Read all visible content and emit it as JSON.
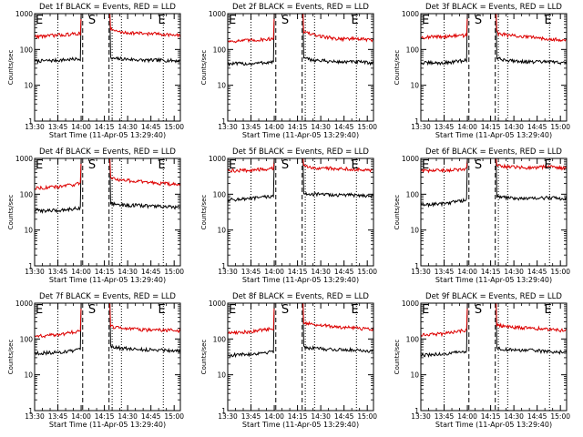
{
  "colors": {
    "events": "#000000",
    "lld": "#dd0000",
    "axis": "#000000",
    "background": "#ffffff"
  },
  "shared": {
    "type": "line",
    "ylabel": "Counts/sec",
    "xlabel": "Start Time (11-Apr-05 13:29:40)",
    "title_suffix": " BLACK = Events, RED = LLD",
    "x_unit": "minutes after 13:29:40",
    "xlim": [
      0,
      94
    ],
    "x_ticks": [
      0,
      15,
      30,
      45,
      60,
      75,
      90
    ],
    "x_tick_labels": [
      "13:30",
      "13:45",
      "14:00",
      "14:15",
      "14:30",
      "14:45",
      "15:00"
    ],
    "y_scale": "log",
    "ylim": [
      1,
      1000
    ],
    "y_ticks": [
      1,
      10,
      100,
      1000
    ],
    "y_tick_labels": [
      "1",
      "10",
      "100",
      "1000"
    ],
    "vlines_dotted": [
      15,
      50,
      56,
      83
    ],
    "vlines_dashed": [
      31,
      48
    ],
    "markers": [
      {
        "label": "E",
        "x": 0
      },
      {
        "label": "S",
        "x": 34
      },
      {
        "label": "E",
        "x": 79
      }
    ]
  },
  "chart_data": [
    {
      "title": "Det 1f",
      "series": [
        {
          "name": "Events",
          "x": [
            0,
            15,
            30,
            31,
            48,
            50,
            56,
            70,
            83,
            94
          ],
          "values": [
            47,
            50,
            55,
            55,
            60,
            55,
            55,
            50,
            50,
            48
          ]
        },
        {
          "name": "LLD",
          "x": [
            0,
            15,
            30,
            31,
            48,
            50,
            56,
            70,
            83,
            94
          ],
          "values": [
            230,
            250,
            280,
            300,
            400,
            350,
            300,
            280,
            270,
            240
          ]
        }
      ]
    },
    {
      "title": "Det 2f",
      "series": [
        {
          "name": "Events",
          "x": [
            0,
            15,
            30,
            31,
            48,
            50,
            56,
            70,
            83,
            94
          ],
          "values": [
            40,
            40,
            45,
            45,
            55,
            55,
            50,
            45,
            45,
            42
          ]
        },
        {
          "name": "LLD",
          "x": [
            0,
            15,
            30,
            31,
            48,
            50,
            56,
            70,
            83,
            94
          ],
          "values": [
            170,
            180,
            200,
            220,
            320,
            300,
            250,
            200,
            200,
            180
          ]
        }
      ]
    },
    {
      "title": "Det 3f",
      "series": [
        {
          "name": "Events",
          "x": [
            0,
            15,
            30,
            31,
            48,
            50,
            56,
            70,
            83,
            94
          ],
          "values": [
            42,
            42,
            50,
            50,
            55,
            55,
            50,
            45,
            45,
            42
          ]
        },
        {
          "name": "LLD",
          "x": [
            0,
            15,
            30,
            31,
            48,
            50,
            56,
            70,
            83,
            94
          ],
          "values": [
            220,
            230,
            250,
            270,
            320,
            280,
            250,
            220,
            200,
            180
          ]
        }
      ]
    },
    {
      "title": "Det 4f",
      "series": [
        {
          "name": "Events",
          "x": [
            0,
            15,
            30,
            31,
            48,
            50,
            56,
            70,
            83,
            94
          ],
          "values": [
            35,
            35,
            42,
            45,
            55,
            55,
            50,
            48,
            45,
            42
          ]
        },
        {
          "name": "LLD",
          "x": [
            0,
            15,
            30,
            31,
            48,
            50,
            56,
            70,
            83,
            94
          ],
          "values": [
            150,
            160,
            200,
            220,
            300,
            280,
            250,
            220,
            200,
            180
          ]
        }
      ]
    },
    {
      "title": "Det 5f",
      "series": [
        {
          "name": "Events",
          "x": [
            0,
            15,
            30,
            31,
            48,
            50,
            56,
            70,
            83,
            94
          ],
          "values": [
            70,
            75,
            90,
            100,
            110,
            105,
            100,
            95,
            95,
            90
          ]
        },
        {
          "name": "LLD",
          "x": [
            0,
            15,
            30,
            31,
            48,
            50,
            56,
            70,
            83,
            94
          ],
          "values": [
            450,
            470,
            520,
            550,
            620,
            600,
            550,
            520,
            500,
            460
          ]
        }
      ]
    },
    {
      "title": "Det 6f",
      "series": [
        {
          "name": "Events",
          "x": [
            0,
            15,
            30,
            31,
            48,
            50,
            56,
            70,
            83,
            94
          ],
          "values": [
            50,
            55,
            70,
            80,
            90,
            85,
            80,
            75,
            80,
            75
          ]
        },
        {
          "name": "LLD",
          "x": [
            0,
            15,
            30,
            31,
            48,
            50,
            56,
            70,
            83,
            94
          ],
          "values": [
            450,
            460,
            500,
            530,
            650,
            620,
            580,
            550,
            600,
            520
          ]
        }
      ]
    },
    {
      "title": "Det 7f",
      "series": [
        {
          "name": "Events",
          "x": [
            0,
            15,
            30,
            31,
            48,
            50,
            56,
            70,
            83,
            94
          ],
          "values": [
            40,
            42,
            50,
            55,
            60,
            60,
            55,
            50,
            50,
            45
          ]
        },
        {
          "name": "LLD",
          "x": [
            0,
            15,
            30,
            31,
            48,
            50,
            56,
            70,
            83,
            94
          ],
          "values": [
            120,
            130,
            170,
            200,
            230,
            220,
            200,
            180,
            180,
            170
          ]
        }
      ]
    },
    {
      "title": "Det 8f",
      "series": [
        {
          "name": "Events",
          "x": [
            0,
            15,
            30,
            31,
            48,
            50,
            56,
            70,
            83,
            94
          ],
          "values": [
            35,
            38,
            45,
            50,
            60,
            58,
            55,
            50,
            50,
            45
          ]
        },
        {
          "name": "LLD",
          "x": [
            0,
            15,
            30,
            31,
            48,
            50,
            56,
            70,
            83,
            94
          ],
          "values": [
            150,
            160,
            200,
            230,
            300,
            280,
            250,
            220,
            200,
            180
          ]
        }
      ]
    },
    {
      "title": "Det 9f",
      "series": [
        {
          "name": "Events",
          "x": [
            0,
            15,
            30,
            31,
            48,
            50,
            56,
            70,
            83,
            94
          ],
          "values": [
            35,
            38,
            45,
            50,
            55,
            55,
            50,
            48,
            45,
            42
          ]
        },
        {
          "name": "LLD",
          "x": [
            0,
            15,
            30,
            31,
            48,
            50,
            56,
            70,
            83,
            94
          ],
          "values": [
            130,
            140,
            180,
            210,
            250,
            240,
            220,
            200,
            190,
            170
          ]
        }
      ]
    }
  ]
}
